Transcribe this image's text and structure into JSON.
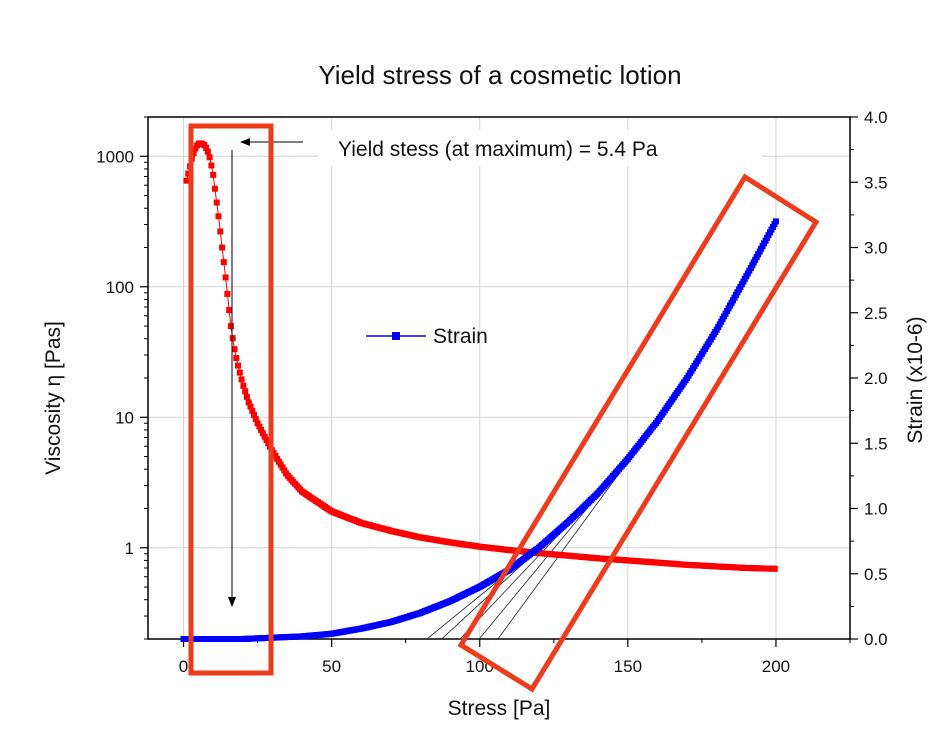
{
  "chart_data": {
    "type": "scatter",
    "title": "Yield stress of a cosmetic lotion",
    "xlabel": "Stress [Pa]",
    "ylabel_left": "Viscosity η [Pas]",
    "ylabel_right": "Strain (x10-6)",
    "xlim": [
      -12,
      225
    ],
    "ylim_left": [
      0.2,
      2000
    ],
    "ylim_left_scale": "log",
    "ylim_right": [
      0,
      4.0
    ],
    "x_ticks": [
      "0",
      "50",
      "100",
      "150",
      "200"
    ],
    "y_left_ticks": [
      "1",
      "10",
      "100",
      "1000"
    ],
    "y_right_ticks": [
      "0.0",
      "0.5",
      "1.0",
      "1.5",
      "2.0",
      "2.5",
      "3.0",
      "3.5",
      "4.0"
    ],
    "grid": true,
    "series": [
      {
        "axis": "left",
        "color": "#ff0000",
        "marker": "square",
        "x": [
          1,
          2,
          3,
          4,
          5,
          6,
          7,
          8,
          9,
          10,
          11,
          12,
          13,
          14,
          15,
          16,
          17,
          18,
          19,
          20,
          22,
          25,
          30,
          35,
          40,
          50,
          60,
          70,
          80,
          90,
          100,
          110,
          120,
          130,
          140,
          150,
          160,
          170,
          180,
          190,
          200
        ],
        "y": [
          650,
          800,
          1000,
          1150,
          1250,
          1260,
          1220,
          1120,
          950,
          720,
          480,
          320,
          200,
          130,
          80,
          50,
          35,
          27,
          22,
          18,
          13,
          9,
          5.5,
          3.6,
          2.7,
          1.9,
          1.55,
          1.35,
          1.2,
          1.1,
          1.02,
          0.96,
          0.91,
          0.87,
          0.83,
          0.8,
          0.77,
          0.74,
          0.72,
          0.7,
          0.69
        ]
      },
      {
        "name": "Strain",
        "axis": "right",
        "color": "#0000ff",
        "marker": "square",
        "x": [
          0,
          10,
          20,
          30,
          40,
          50,
          60,
          70,
          80,
          90,
          100,
          110,
          120,
          130,
          140,
          150,
          160,
          170,
          180,
          190,
          200
        ],
        "y": [
          0.0,
          0.0,
          0.0,
          0.01,
          0.02,
          0.04,
          0.08,
          0.13,
          0.2,
          0.29,
          0.4,
          0.53,
          0.7,
          0.9,
          1.12,
          1.38,
          1.67,
          2.0,
          2.37,
          2.78,
          3.2
        ]
      }
    ],
    "annotations": {
      "yield_text": "Yield stess (at maximum) = 5.4 Pa",
      "yield_x": 5.4
    },
    "highlight_boxes_color": "#ee3b1b"
  }
}
